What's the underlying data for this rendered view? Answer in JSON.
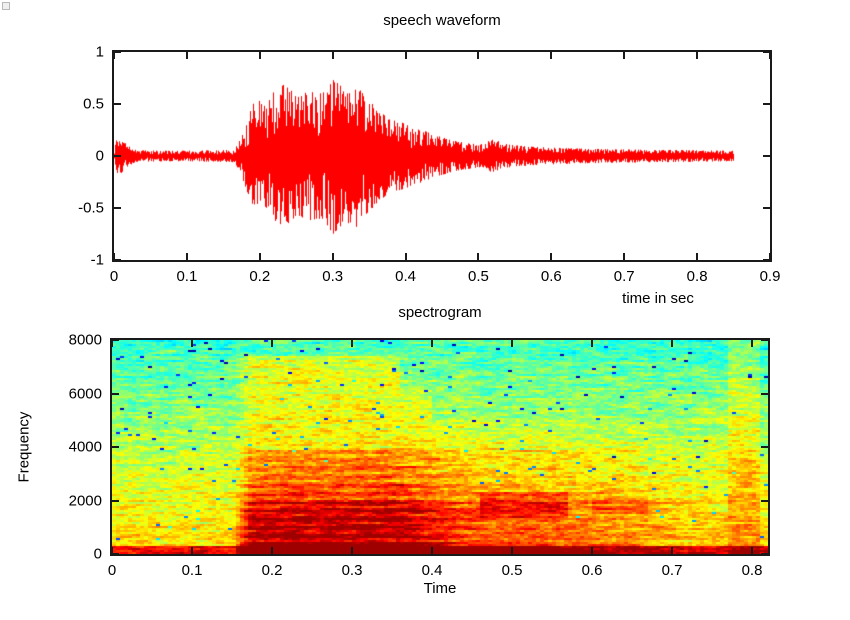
{
  "figure": {
    "background": "#ffffff",
    "axis_color": "#1a1a1a",
    "text_color": "#000000"
  },
  "chart_data": [
    {
      "type": "line",
      "title": "speech waveform",
      "xlabel": "time in sec",
      "ylabel": "",
      "xlim": [
        0,
        0.9
      ],
      "ylim": [
        -1,
        1
      ],
      "xticks": [
        0,
        0.1,
        0.2,
        0.3,
        0.4,
        0.5,
        0.6,
        0.7,
        0.8,
        0.9
      ],
      "xtick_labels": [
        "0",
        "0.1",
        "0.2",
        "0.3",
        "0.4",
        "0.5",
        "0.6",
        "0.7",
        "0.8",
        "0.9"
      ],
      "yticks": [
        1,
        0.5,
        0,
        -0.5,
        -1
      ],
      "ytick_labels": [
        "1",
        "0.5",
        "0",
        "-0.5",
        "-1"
      ],
      "grid": false,
      "line_color": "#ff0000",
      "signal_duration_sec": 0.85,
      "seed": 11,
      "amplitude_envelope": [
        [
          0.0,
          0.03
        ],
        [
          0.003,
          0.2
        ],
        [
          0.01,
          0.16
        ],
        [
          0.018,
          0.1
        ],
        [
          0.03,
          0.055
        ],
        [
          0.08,
          0.05
        ],
        [
          0.14,
          0.055
        ],
        [
          0.165,
          0.06
        ],
        [
          0.175,
          0.2
        ],
        [
          0.19,
          0.5
        ],
        [
          0.205,
          0.55
        ],
        [
          0.22,
          0.62
        ],
        [
          0.235,
          0.7
        ],
        [
          0.25,
          0.56
        ],
        [
          0.265,
          0.62
        ],
        [
          0.285,
          0.6
        ],
        [
          0.3,
          0.75
        ],
        [
          0.315,
          0.64
        ],
        [
          0.33,
          0.7
        ],
        [
          0.345,
          0.56
        ],
        [
          0.36,
          0.46
        ],
        [
          0.375,
          0.36
        ],
        [
          0.395,
          0.32
        ],
        [
          0.415,
          0.27
        ],
        [
          0.44,
          0.2
        ],
        [
          0.47,
          0.14
        ],
        [
          0.5,
          0.11
        ],
        [
          0.52,
          0.16
        ],
        [
          0.54,
          0.11
        ],
        [
          0.57,
          0.09
        ],
        [
          0.62,
          0.075
        ],
        [
          0.68,
          0.065
        ],
        [
          0.74,
          0.06
        ],
        [
          0.8,
          0.055
        ],
        [
          0.85,
          0.05
        ]
      ]
    },
    {
      "type": "heatmap",
      "title": "spectrogram",
      "xlabel": "Time",
      "ylabel": "Frequency",
      "xlim": [
        0,
        0.82
      ],
      "ylim": [
        0,
        8000
      ],
      "xticks": [
        0,
        0.1,
        0.2,
        0.3,
        0.4,
        0.5,
        0.6,
        0.7,
        0.8
      ],
      "xtick_labels": [
        "0",
        "0.1",
        "0.2",
        "0.3",
        "0.4",
        "0.5",
        "0.6",
        "0.7",
        "0.8"
      ],
      "yticks": [
        0,
        2000,
        4000,
        6000,
        8000
      ],
      "ytick_labels": [
        "0",
        "2000",
        "4000",
        "6000",
        "8000"
      ],
      "colormap": "jet",
      "seed": 7,
      "base_gradient": {
        "v_low_freq": 0.66,
        "v_drop": 0.24,
        "exponent": 1.2
      },
      "voiced_envelope": [
        [
          0.15,
          0
        ],
        [
          0.172,
          0.9
        ],
        [
          0.19,
          1
        ],
        [
          0.36,
          1
        ],
        [
          0.45,
          0.55
        ],
        [
          0.6,
          0.38
        ],
        [
          0.72,
          0.12
        ],
        [
          0.82,
          0.06
        ]
      ],
      "energy_bands": [
        {
          "f_lo": 0,
          "f_hi": 420,
          "w": 0.33
        },
        {
          "f_lo": 420,
          "f_hi": 1900,
          "w": 0.3
        },
        {
          "f_lo": 1900,
          "f_hi": 2600,
          "w": 0.2
        },
        {
          "f_lo": 2600,
          "f_hi": 3900,
          "w": 0.17
        },
        {
          "f_lo": 3900,
          "f_hi": 5000,
          "w": 0.09
        },
        {
          "f_lo": 5000,
          "f_hi": 6200,
          "w": 0.11,
          "t0": 0.15,
          "t1": 0.4
        },
        {
          "f_lo": 6200,
          "f_hi": 7400,
          "w": 0.14,
          "t0": 0.15,
          "t1": 0.36
        },
        {
          "f_lo": 7400,
          "f_hi": 8001,
          "w": 0.03
        }
      ],
      "patches": [
        {
          "t0": 0.46,
          "t1": 0.57,
          "f_lo": 1300,
          "f_hi": 2300,
          "w": 0.1
        },
        {
          "t0": 0.6,
          "t1": 0.67,
          "f_lo": 1500,
          "f_hi": 2100,
          "w": 0.08
        },
        {
          "t0": 0.77,
          "t1": 0.81,
          "f_lo": 0,
          "f_hi": 8000,
          "w": 0.07
        }
      ],
      "bottom_band": {
        "f_max": 260,
        "w": 0.22
      },
      "harmonic_ripple": {
        "period_hz": 320,
        "amp": 0.07,
        "f_max": 4200
      },
      "noise_amp": 0.15,
      "speck_probability": 0.012
    }
  ]
}
